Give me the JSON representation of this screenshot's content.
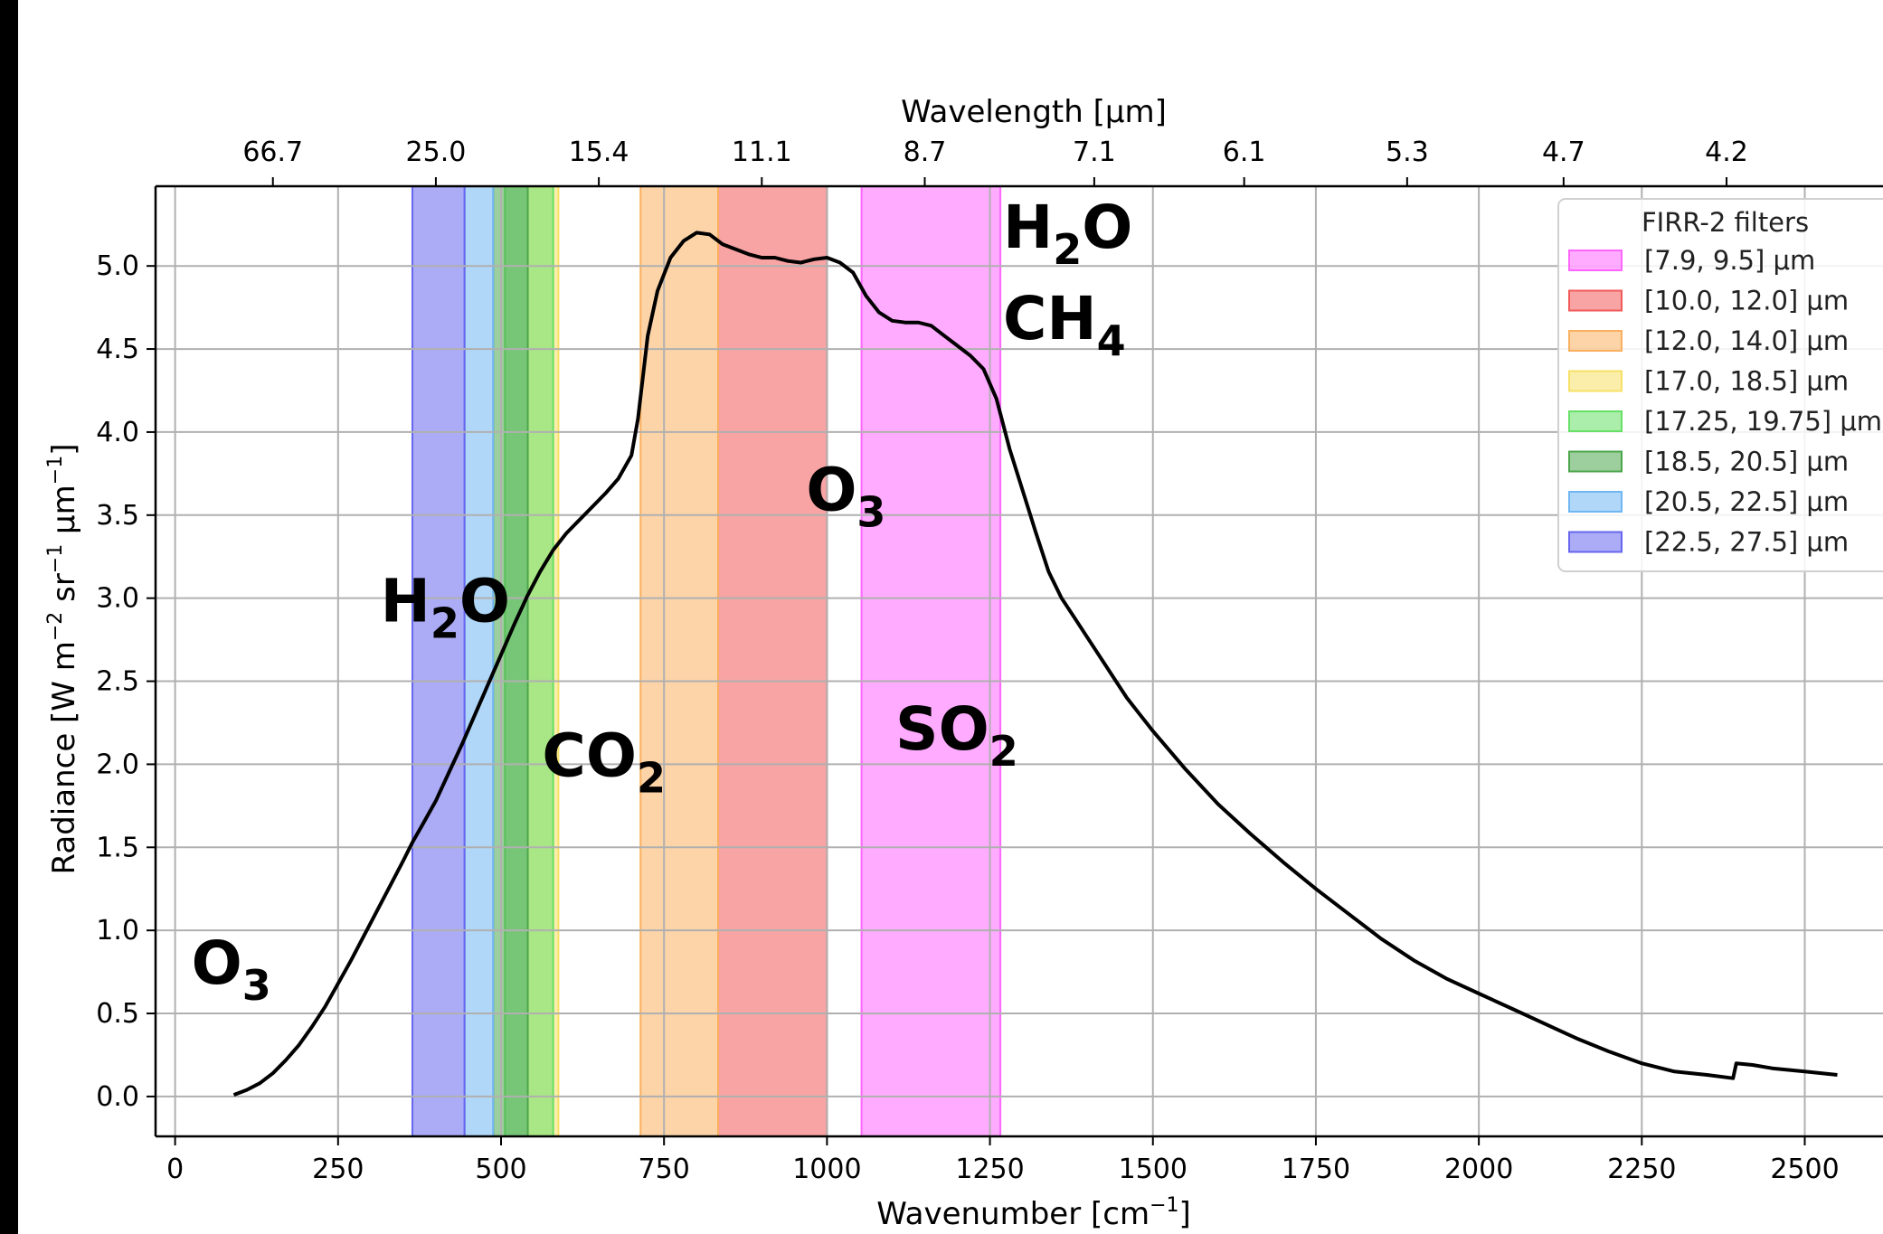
{
  "chart_data": {
    "type": "line",
    "xlabel": "Wavenumber [cm",
    "xlabel_sup": "−1",
    "xlabel_end": "]",
    "ylabel": "Radiance [W m",
    "ylabel_sup1": "−2",
    "ylabel_mid": " sr",
    "ylabel_sup2": "−1",
    "ylabel_mid2": " μm",
    "ylabel_sup3": "−1",
    "ylabel_end": "]",
    "top_xlabel": "Wavelength [μm]",
    "xlim": [
      -30,
      2620
    ],
    "ylim": [
      -0.24,
      5.48
    ],
    "grid": true,
    "x_ticks": [
      0,
      250,
      500,
      750,
      1000,
      1250,
      1500,
      1750,
      2000,
      2250,
      2500
    ],
    "x_tick_labels": [
      "0",
      "250",
      "500",
      "750",
      "1000",
      "1250",
      "1500",
      "1750",
      "2000",
      "2250",
      "2500"
    ],
    "y_ticks": [
      0.0,
      0.5,
      1.0,
      1.5,
      2.0,
      2.5,
      3.0,
      3.5,
      4.0,
      4.5,
      5.0
    ],
    "y_tick_labels": [
      "0.0",
      "0.5",
      "1.0",
      "1.5",
      "2.0",
      "2.5",
      "3.0",
      "3.5",
      "4.0",
      "4.5",
      "5.0"
    ],
    "top_ticks": [
      {
        "wavenumber": 150,
        "label": "66.7"
      },
      {
        "wavenumber": 400,
        "label": "25.0"
      },
      {
        "wavenumber": 650,
        "label": "15.4"
      },
      {
        "wavenumber": 900,
        "label": "11.1"
      },
      {
        "wavenumber": 1150,
        "label": "8.7"
      },
      {
        "wavenumber": 1410,
        "label": "7.1"
      },
      {
        "wavenumber": 1640,
        "label": "6.1"
      },
      {
        "wavenumber": 1890,
        "label": "5.3"
      },
      {
        "wavenumber": 2130,
        "label": "4.7"
      },
      {
        "wavenumber": 2380,
        "label": "4.2"
      }
    ],
    "filters_legend_title": "FIRR-2 filters",
    "filters": [
      {
        "label": "[7.9, 9.5] μm",
        "range": [
          1053,
          1266
        ],
        "color": "#ff66ff"
      },
      {
        "label": "[10.0, 12.0] μm",
        "range": [
          833,
          1000
        ],
        "color": "#f25a5a"
      },
      {
        "label": "[12.0, 14.0] μm",
        "range": [
          714,
          833
        ],
        "color": "#fbb060"
      },
      {
        "label": "[17.0, 18.5] μm",
        "range": [
          541,
          588
        ],
        "color": "#f7e066"
      },
      {
        "label": "[17.25, 19.75] μm",
        "range": [
          506,
          580
        ],
        "color": "#66e066"
      },
      {
        "label": "[18.5, 20.5] μm",
        "range": [
          488,
          541
        ],
        "color": "#4ca64c"
      },
      {
        "label": "[20.5, 22.5] μm",
        "range": [
          444,
          488
        ],
        "color": "#6fb6f2"
      },
      {
        "label": "[22.5, 27.5] μm",
        "range": [
          364,
          444
        ],
        "color": "#6666ee"
      }
    ],
    "series": [
      {
        "x": [
          90,
          110,
          130,
          150,
          170,
          190,
          210,
          230,
          250,
          270,
          290,
          310,
          330,
          350,
          364,
          380,
          400,
          420,
          440,
          460,
          480,
          500,
          520,
          540,
          560,
          580,
          600,
          620,
          640,
          660,
          680,
          700,
          710,
          725,
          740,
          760,
          780,
          800,
          820,
          840,
          860,
          880,
          900,
          920,
          940,
          960,
          980,
          1000,
          1020,
          1040,
          1060,
          1080,
          1100,
          1120,
          1140,
          1160,
          1180,
          1200,
          1220,
          1240,
          1260,
          1280,
          1300,
          1320,
          1340,
          1360,
          1380,
          1400,
          1420,
          1440,
          1460,
          1480,
          1500,
          1550,
          1600,
          1650,
          1700,
          1750,
          1800,
          1850,
          1900,
          1950,
          2000,
          2050,
          2100,
          2150,
          2200,
          2250,
          2300,
          2350,
          2390,
          2395,
          2420,
          2450,
          2500,
          2550
        ],
        "y": [
          0.01,
          0.04,
          0.08,
          0.14,
          0.22,
          0.31,
          0.42,
          0.54,
          0.68,
          0.82,
          0.97,
          1.12,
          1.27,
          1.42,
          1.53,
          1.64,
          1.78,
          1.95,
          2.12,
          2.3,
          2.48,
          2.66,
          2.84,
          3.01,
          3.16,
          3.29,
          3.39,
          3.47,
          3.55,
          3.63,
          3.72,
          3.86,
          4.08,
          4.58,
          4.85,
          5.05,
          5.15,
          5.2,
          5.19,
          5.13,
          5.1,
          5.07,
          5.05,
          5.05,
          5.03,
          5.02,
          5.04,
          5.05,
          5.02,
          4.96,
          4.82,
          4.72,
          4.67,
          4.66,
          4.66,
          4.64,
          4.58,
          4.52,
          4.46,
          4.38,
          4.2,
          3.9,
          3.65,
          3.4,
          3.16,
          3.0,
          2.88,
          2.76,
          2.64,
          2.52,
          2.4,
          2.3,
          2.2,
          1.97,
          1.76,
          1.58,
          1.41,
          1.25,
          1.1,
          0.95,
          0.82,
          0.71,
          0.62,
          0.53,
          0.44,
          0.35,
          0.27,
          0.2,
          0.15,
          0.13,
          0.11,
          0.2,
          0.19,
          0.17,
          0.15,
          0.13
        ]
      }
    ],
    "annotations": [
      {
        "base": "O",
        "sub": "3",
        "x": 25,
        "y": 0.68
      },
      {
        "base": "H",
        "sub": "2",
        "tail": "O",
        "x": 315,
        "y": 2.86
      },
      {
        "base": "CO",
        "sub": "2",
        "x": 563,
        "y": 1.93
      },
      {
        "base": "O",
        "sub": "3",
        "x": 968,
        "y": 3.53
      },
      {
        "base": "SO",
        "sub": "2",
        "x": 1105,
        "y": 2.09
      },
      {
        "base": "H",
        "sub": "2",
        "tail": "O",
        "x": 1270,
        "y": 5.11
      },
      {
        "base": "CH",
        "sub": "4",
        "x": 1270,
        "y": 4.56
      }
    ]
  }
}
